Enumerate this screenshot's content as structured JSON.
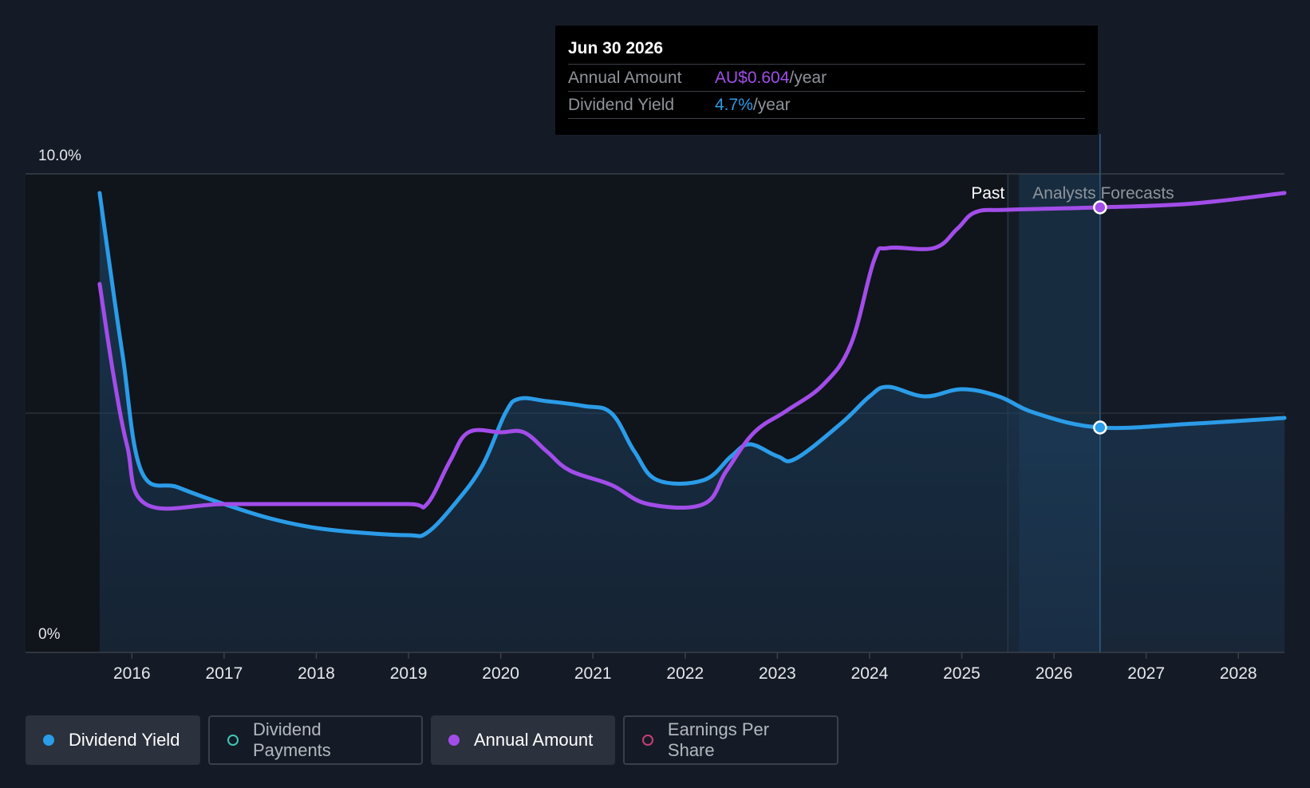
{
  "chart_data": {
    "type": "line",
    "y_ticks": [
      "10.0%",
      "0%"
    ],
    "ylim": [
      0,
      10
    ],
    "xlim": [
      2015.4,
      2028.5
    ],
    "x_ticks": [
      "2016",
      "2017",
      "2018",
      "2019",
      "2020",
      "2021",
      "2022",
      "2023",
      "2024",
      "2025",
      "2026",
      "2027",
      "2028"
    ],
    "forecast_start": 2025.5,
    "regions": {
      "past_label": "Past",
      "forecast_label": "Analysts Forecasts"
    },
    "grid": {
      "horizontal": true,
      "y_values": [
        10,
        5
      ]
    },
    "series": [
      {
        "name": "Dividend Yield",
        "color": "#2b9ce8",
        "unit": "%",
        "points": [
          [
            2015.65,
            9.6
          ],
          [
            2015.75,
            8.2
          ],
          [
            2015.9,
            6.2
          ],
          [
            2016.1,
            3.8
          ],
          [
            2016.5,
            3.45
          ],
          [
            2017.0,
            3.1
          ],
          [
            2017.5,
            2.8
          ],
          [
            2018.0,
            2.6
          ],
          [
            2018.5,
            2.5
          ],
          [
            2019.0,
            2.45
          ],
          [
            2019.2,
            2.5
          ],
          [
            2019.5,
            3.1
          ],
          [
            2019.8,
            3.9
          ],
          [
            2020.05,
            5.0
          ],
          [
            2020.2,
            5.3
          ],
          [
            2020.5,
            5.25
          ],
          [
            2020.9,
            5.15
          ],
          [
            2021.2,
            5.0
          ],
          [
            2021.45,
            4.2
          ],
          [
            2021.7,
            3.6
          ],
          [
            2022.2,
            3.6
          ],
          [
            2022.5,
            4.1
          ],
          [
            2022.7,
            4.35
          ],
          [
            2023.0,
            4.1
          ],
          [
            2023.2,
            4.05
          ],
          [
            2023.7,
            4.8
          ],
          [
            2024.0,
            5.35
          ],
          [
            2024.2,
            5.55
          ],
          [
            2024.6,
            5.35
          ],
          [
            2025.0,
            5.5
          ],
          [
            2025.4,
            5.35
          ],
          [
            2025.8,
            5.0
          ],
          [
            2026.5,
            4.7
          ],
          [
            2027.5,
            4.78
          ],
          [
            2028.5,
            4.9
          ]
        ]
      },
      {
        "name": "Annual Amount",
        "color": "#a24de9",
        "unit": "AU$",
        "points": [
          [
            2015.65,
            7.7
          ],
          [
            2015.8,
            5.8
          ],
          [
            2015.95,
            4.3
          ],
          [
            2016.15,
            3.1
          ],
          [
            2017.0,
            3.1
          ],
          [
            2018.0,
            3.1
          ],
          [
            2019.0,
            3.1
          ],
          [
            2019.2,
            3.1
          ],
          [
            2019.45,
            4.0
          ],
          [
            2019.65,
            4.6
          ],
          [
            2020.0,
            4.6
          ],
          [
            2020.25,
            4.6
          ],
          [
            2020.5,
            4.2
          ],
          [
            2020.75,
            3.8
          ],
          [
            2021.2,
            3.5
          ],
          [
            2021.6,
            3.1
          ],
          [
            2022.2,
            3.1
          ],
          [
            2022.45,
            3.8
          ],
          [
            2022.75,
            4.6
          ],
          [
            2023.1,
            5.05
          ],
          [
            2023.5,
            5.6
          ],
          [
            2023.8,
            6.45
          ],
          [
            2024.05,
            8.2
          ],
          [
            2024.2,
            8.45
          ],
          [
            2024.7,
            8.45
          ],
          [
            2024.95,
            8.85
          ],
          [
            2025.15,
            9.2
          ],
          [
            2025.5,
            9.25
          ],
          [
            2026.5,
            9.3
          ],
          [
            2027.5,
            9.38
          ],
          [
            2028.5,
            9.6
          ]
        ]
      }
    ],
    "highlight": {
      "x": 2026.5,
      "yield": 4.7,
      "amount": 9.3
    }
  },
  "tooltip": {
    "date": "Jun 30 2026",
    "rows": [
      {
        "label": "Annual Amount",
        "value": "AU$0.604",
        "unit": "/year",
        "color": "#a24de9"
      },
      {
        "label": "Dividend Yield",
        "value": "4.7%",
        "unit": "/year",
        "color": "#2b9ce8"
      }
    ]
  },
  "legend": [
    {
      "label": "Dividend Yield",
      "color": "#2b9ce8",
      "active": true
    },
    {
      "label": "Dividend Payments",
      "color": "#3fc7b5",
      "active": false
    },
    {
      "label": "Annual Amount",
      "color": "#a24de9",
      "active": true
    },
    {
      "label": "Earnings Per Share",
      "color": "#c83d78",
      "active": false
    }
  ]
}
